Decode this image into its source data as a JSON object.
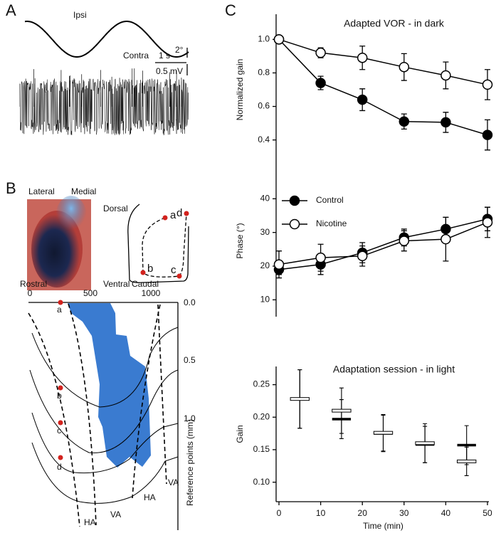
{
  "panel_labels": [
    "A",
    "B",
    "C"
  ],
  "panel_a": {
    "trace_labels": [
      "Ipsi",
      "Contra"
    ],
    "scale_bars": [
      "1 s",
      "2°",
      "0.5 mV"
    ]
  },
  "panel_b": {
    "orientation": [
      "Lateral",
      "Medial",
      "Dorsal",
      "Ventral"
    ],
    "points": [
      "a",
      "b",
      "c",
      "d"
    ],
    "map": {
      "rostral": "Rostral",
      "caudal": "Caudal",
      "xticks": [
        "0",
        "500",
        "1000"
      ],
      "yticks": [
        "0.0",
        "0.5",
        "1.0"
      ],
      "ylabel": "Reference points (mm)",
      "regions": [
        "HA",
        "VA",
        "HA",
        "VA"
      ]
    }
  },
  "chart_data": [
    {
      "type": "line",
      "title": "Adapted VOR - in dark",
      "ylabel": "Normalized gain",
      "x": [
        0,
        10,
        20,
        30,
        40,
        50
      ],
      "xlim": [
        0,
        50
      ],
      "ylim": [
        0.25,
        1.15
      ],
      "yticks": [
        0.4,
        0.6,
        0.8,
        {
          "value": 1.0,
          "label": "1.0"
        }
      ],
      "series": [
        {
          "color": "#000000",
          "marker": "filled",
          "values": [
            1.0,
            0.74,
            0.64,
            0.51,
            0.505,
            0.43
          ],
          "errors": [
            0,
            0.04,
            0.065,
            0.045,
            0.06,
            0.09
          ]
        },
        {
          "color": "#000000",
          "marker": "open",
          "values": [
            1.0,
            0.92,
            0.89,
            0.835,
            0.785,
            0.73
          ],
          "errors": [
            0,
            0.03,
            0.07,
            0.08,
            0.08,
            0.09
          ]
        }
      ]
    },
    {
      "type": "line",
      "ylabel": "Phase (°)",
      "legend": "upper left",
      "x": [
        0,
        10,
        20,
        30,
        40,
        50
      ],
      "xlim": [
        0,
        50
      ],
      "ylim": [
        5,
        50
      ],
      "yticks": [
        10,
        20,
        30,
        40
      ],
      "series": [
        {
          "name": "Control",
          "color": "#000000",
          "marker": "filled",
          "values": [
            19,
            20.5,
            24,
            28.5,
            31,
            34
          ],
          "errors": [
            1.5,
            3,
            3,
            2.5,
            3.5,
            3.5
          ]
        },
        {
          "name": "Nicotine",
          "color": "#000000",
          "marker": "open",
          "values": [
            20.5,
            22.5,
            23,
            27.5,
            28,
            33
          ],
          "errors": [
            4,
            4,
            3,
            3,
            6.5,
            4.5
          ]
        }
      ]
    },
    {
      "type": "errorbar",
      "title": "Adaptation session - in light",
      "ylabel": "Gain",
      "xlabel": "Time (min)",
      "x": [
        5,
        15,
        25,
        35,
        45
      ],
      "xlim": [
        0,
        50
      ],
      "xticks": [
        0,
        10,
        20,
        30,
        40,
        50
      ],
      "ylim": [
        0.07,
        0.278
      ],
      "yticks": [
        {
          "value": 0.1,
          "label": "0.10"
        },
        0.15,
        {
          "value": 0.2,
          "label": "0.20"
        },
        0.25
      ],
      "series": [
        {
          "color": "#000000",
          "marker": "filled",
          "values": [
            0.228,
            0.197,
            0.175,
            0.158,
            0.157
          ],
          "errors": [
            0.045,
            0.03,
            0.028,
            0.028,
            0.03
          ]
        },
        {
          "color": "#000000",
          "marker": "open",
          "values": [
            0.228,
            0.21,
            0.176,
            0.16,
            0.132
          ],
          "errors": [
            0.045,
            0.035,
            0.028,
            0.03,
            0.022
          ]
        }
      ]
    }
  ]
}
